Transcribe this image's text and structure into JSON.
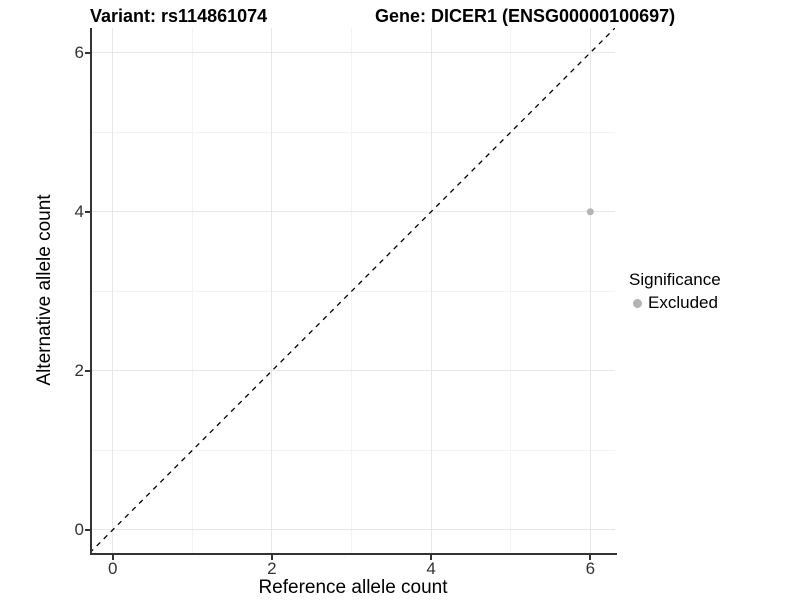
{
  "chart_data": {
    "type": "scatter",
    "titles": {
      "left": "Variant: rs114861074",
      "right": "Gene: DICER1 (ENSG00000100697)"
    },
    "xlabel": "Reference allele count",
    "ylabel": "Alternative allele count",
    "xlim": [
      -0.26,
      6.31
    ],
    "ylim": [
      -0.29,
      6.31
    ],
    "x_breaks": [
      0,
      2,
      4,
      6
    ],
    "y_breaks": [
      0,
      2,
      4,
      6
    ],
    "x_minor_breaks": [
      1,
      3,
      5
    ],
    "y_minor_breaks": [
      1,
      3,
      5
    ],
    "grid": true,
    "points": [
      {
        "x": 6,
        "y": 4,
        "series": "Excluded"
      }
    ],
    "reference_line": {
      "type": "identity",
      "slope": 1,
      "intercept": 0,
      "style": "dashed",
      "color": "#000000"
    },
    "legend": {
      "title": "Significance",
      "position": "right",
      "items": [
        {
          "label": "Excluded",
          "color": "#b3b3b3"
        }
      ]
    },
    "colors": {
      "point": "#b3b3b3",
      "grid_major": "#e7e7e7",
      "grid_minor": "#f3f3f3",
      "axis_line": "#333333",
      "tick_text": "#333333",
      "title_text": "#000000"
    }
  }
}
